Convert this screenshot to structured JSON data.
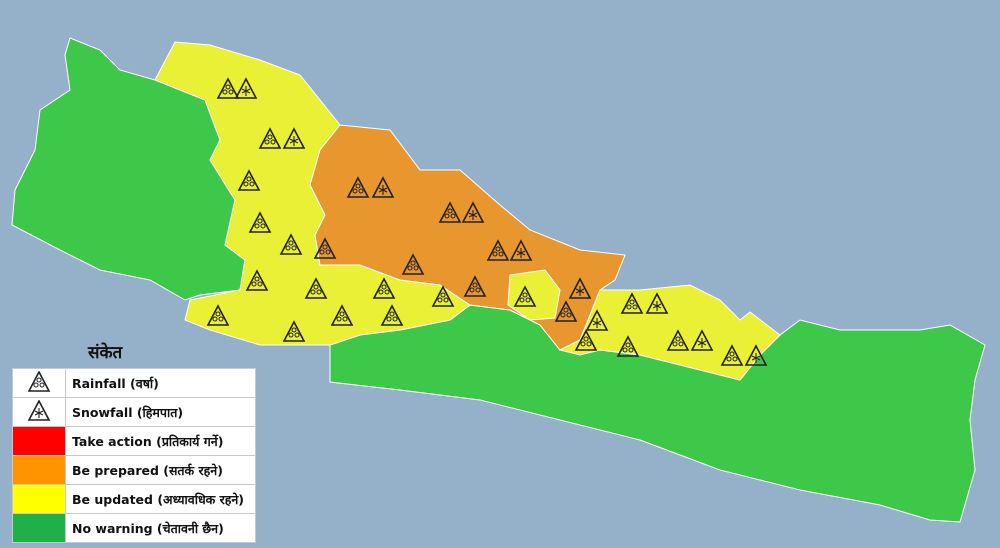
{
  "colors": {
    "background": "#95b1c9",
    "take_action": "#ff0000",
    "be_prepared": "#e8962e",
    "be_updated": "#e9f036",
    "no_warning": "#3ec84a",
    "legend_take_action": "#fe0000",
    "legend_be_prepared": "#ff9400",
    "legend_be_updated": "#ffff00",
    "legend_no_warning": "#1fb04a"
  },
  "legend": {
    "title": "संकेत",
    "items": [
      {
        "icon": "rainfall-icon",
        "label": "Rainfall (वर्षा)"
      },
      {
        "icon": "snowfall-icon",
        "label": "Snowfall (हिमपात)"
      },
      {
        "swatch": "#fe0000",
        "label": "Take action (प्रतिकार्य गर्ने)"
      },
      {
        "swatch": "#ff9400",
        "label": "Be prepared (सतर्क रहने)"
      },
      {
        "swatch": "#ffff00",
        "label": "Be updated (अध्यावधिक रहने)"
      },
      {
        "swatch": "#1fb04a",
        "label": "No warning (चेतावनी छैन)"
      }
    ]
  }
}
